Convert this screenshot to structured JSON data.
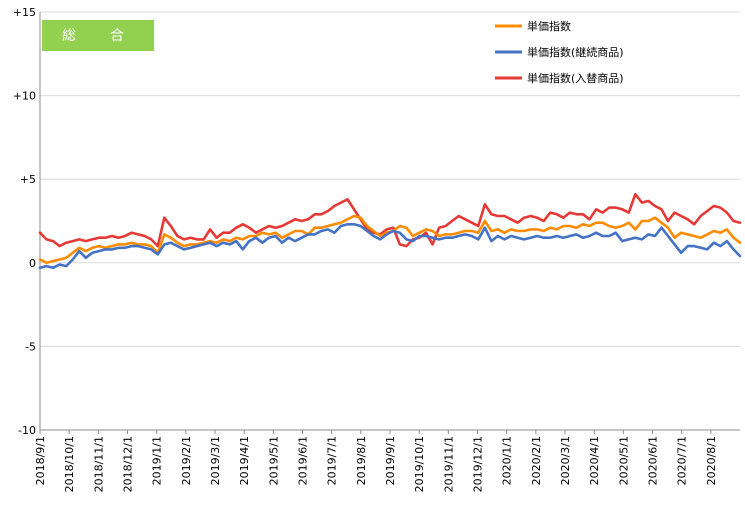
{
  "chart_data": {
    "type": "line",
    "badge": {
      "label": "総　合",
      "color": "#92D050"
    },
    "ylim": [
      -10,
      15
    ],
    "y_ticks": [
      15,
      10,
      5,
      0,
      -5,
      -10
    ],
    "y_tick_labels": [
      "+15",
      "+10",
      "+5",
      "0",
      "-5",
      "-10"
    ],
    "x_tick_labels": [
      "2018/9/1",
      "2018/10/1",
      "2018/11/1",
      "2018/12/1",
      "2019/1/1",
      "2019/2/1",
      "2019/3/1",
      "2019/4/1",
      "2019/5/1",
      "2019/6/1",
      "2019/7/1",
      "2019/8/1",
      "2019/9/1",
      "2019/10/1",
      "2019/11/1",
      "2019/12/1",
      "2020/1/1",
      "2020/2/1",
      "2020/3/1",
      "2020/4/1",
      "2020/5/1",
      "2020/6/1",
      "2020/7/1",
      "2020/8/1"
    ],
    "grid": "horizontal",
    "legend_position": "top-right",
    "series": [
      {
        "name": "単価指数",
        "color": "#FF8C00",
        "values": [
          0.2,
          0.0,
          0.1,
          0.2,
          0.3,
          0.6,
          0.9,
          0.7,
          0.9,
          1.0,
          0.9,
          1.0,
          1.1,
          1.1,
          1.2,
          1.1,
          1.1,
          1.0,
          0.6,
          1.7,
          1.5,
          1.2,
          1.0,
          1.1,
          1.1,
          1.2,
          1.3,
          1.2,
          1.4,
          1.3,
          1.5,
          1.4,
          1.6,
          1.6,
          1.8,
          1.7,
          1.8,
          1.5,
          1.7,
          1.9,
          1.9,
          1.7,
          2.1,
          2.1,
          2.2,
          2.3,
          2.4,
          2.6,
          2.8,
          2.7,
          2.2,
          1.9,
          1.6,
          1.8,
          1.9,
          2.2,
          2.1,
          1.6,
          1.8,
          2.0,
          1.9,
          1.6,
          1.7,
          1.7,
          1.8,
          1.9,
          1.9,
          1.8,
          2.5,
          1.9,
          2.0,
          1.8,
          2.0,
          1.9,
          1.9,
          2.0,
          2.0,
          1.9,
          2.1,
          2.0,
          2.2,
          2.2,
          2.1,
          2.3,
          2.2,
          2.4,
          2.4,
          2.2,
          2.1,
          2.2,
          2.4,
          2.0,
          2.5,
          2.5,
          2.7,
          2.4,
          2.1,
          1.5,
          1.8,
          1.7,
          1.6,
          1.5,
          1.7,
          1.9,
          1.8,
          2.0,
          1.5,
          1.2
        ]
      },
      {
        "name": "単価指数(継続商品)",
        "color": "#4472C4",
        "values": [
          -0.3,
          -0.2,
          -0.3,
          -0.1,
          -0.2,
          0.2,
          0.7,
          0.3,
          0.6,
          0.7,
          0.8,
          0.8,
          0.9,
          0.9,
          1.0,
          1.0,
          0.9,
          0.8,
          0.5,
          1.1,
          1.2,
          1.0,
          0.8,
          0.9,
          1.0,
          1.1,
          1.2,
          1.0,
          1.2,
          1.1,
          1.3,
          0.8,
          1.3,
          1.5,
          1.2,
          1.5,
          1.6,
          1.2,
          1.5,
          1.3,
          1.5,
          1.7,
          1.7,
          1.9,
          2.0,
          1.8,
          2.2,
          2.3,
          2.3,
          2.2,
          1.9,
          1.6,
          1.4,
          1.7,
          1.9,
          1.8,
          1.4,
          1.3,
          1.6,
          1.6,
          1.5,
          1.4,
          1.5,
          1.5,
          1.6,
          1.7,
          1.6,
          1.4,
          2.1,
          1.3,
          1.6,
          1.4,
          1.6,
          1.5,
          1.4,
          1.5,
          1.6,
          1.5,
          1.5,
          1.6,
          1.5,
          1.6,
          1.7,
          1.5,
          1.6,
          1.8,
          1.6,
          1.6,
          1.8,
          1.3,
          1.4,
          1.5,
          1.4,
          1.7,
          1.6,
          2.1,
          1.6,
          1.1,
          0.6,
          1.0,
          1.0,
          0.9,
          0.8,
          1.2,
          1.0,
          1.3,
          0.8,
          0.4
        ]
      },
      {
        "name": "単価指数(入替商品)",
        "color": "#E53935",
        "values": [
          1.8,
          1.4,
          1.3,
          1.0,
          1.2,
          1.3,
          1.4,
          1.3,
          1.4,
          1.5,
          1.5,
          1.6,
          1.5,
          1.6,
          1.8,
          1.7,
          1.6,
          1.4,
          1.0,
          2.7,
          2.2,
          1.6,
          1.4,
          1.5,
          1.4,
          1.4,
          2.0,
          1.5,
          1.8,
          1.8,
          2.1,
          2.3,
          2.1,
          1.8,
          2.0,
          2.2,
          2.1,
          2.2,
          2.4,
          2.6,
          2.5,
          2.6,
          2.9,
          2.9,
          3.1,
          3.4,
          3.6,
          3.8,
          3.2,
          2.6,
          2.0,
          1.8,
          1.7,
          2.0,
          2.1,
          1.1,
          1.0,
          1.4,
          1.5,
          1.8,
          1.1,
          2.1,
          2.2,
          2.5,
          2.8,
          2.6,
          2.4,
          2.2,
          3.5,
          2.9,
          2.8,
          2.8,
          2.6,
          2.4,
          2.7,
          2.8,
          2.7,
          2.5,
          3.0,
          2.9,
          2.7,
          3.0,
          2.9,
          2.9,
          2.6,
          3.2,
          3.0,
          3.3,
          3.3,
          3.2,
          3.0,
          4.1,
          3.6,
          3.7,
          3.4,
          3.2,
          2.5,
          3.0,
          2.8,
          2.6,
          2.3,
          2.8,
          3.1,
          3.4,
          3.3,
          3.0,
          2.5,
          2.4
        ]
      }
    ]
  }
}
